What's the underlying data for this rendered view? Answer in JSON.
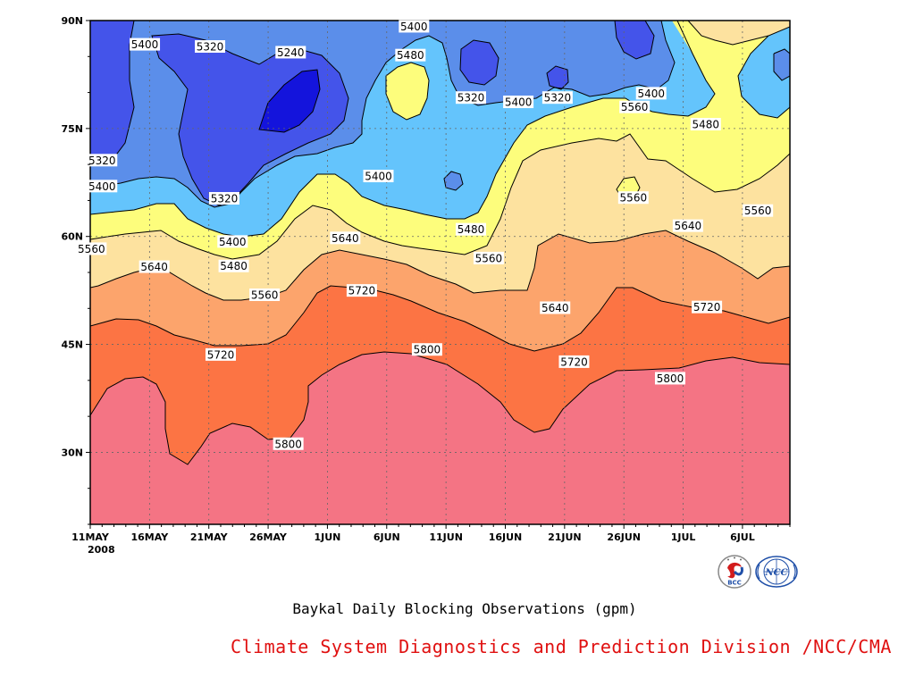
{
  "chart_data": {
    "type": "heatmap",
    "title": "Baykal Daily Blocking Observations (gpm)",
    "credit": "Climate System Diagnostics and Prediction Division /NCC/CMA",
    "x_ticks": [
      "11MAY",
      "16MAY",
      "21MAY",
      "26MAY",
      "1JUN",
      "6JUN",
      "11JUN",
      "16JUN",
      "21JUN",
      "26JUN",
      "1JUL",
      "6JUL"
    ],
    "x_year": "2008",
    "y_ticks": [
      "30N",
      "45N",
      "60N",
      "75N",
      "90N"
    ],
    "x_range": [
      "2008-05-11",
      "2008-07-09"
    ],
    "y_range_deg": [
      20,
      90
    ],
    "grid": true,
    "contour_levels": [
      5240,
      5320,
      5400,
      5480,
      5560,
      5640,
      5720,
      5800
    ],
    "level_colors": [
      "#1414dc",
      "#4454ea",
      "#5b8eea",
      "#64c4fc",
      "#fdfd7c",
      "#fde29f",
      "#fca46c",
      "#fc7444",
      "#f47484"
    ],
    "contour_labels": [
      {
        "text": "5400",
        "x_day": 4.6,
        "y_deg": 86.7
      },
      {
        "text": "5320",
        "x_day": 10.1,
        "y_deg": 86.4
      },
      {
        "text": "5240",
        "x_day": 16.9,
        "y_deg": 85.6
      },
      {
        "text": "5400",
        "x_day": 27.3,
        "y_deg": 89.2
      },
      {
        "text": "5480",
        "x_day": 27.0,
        "y_deg": 85.2
      },
      {
        "text": "5320",
        "x_day": 32.1,
        "y_deg": 79.3
      },
      {
        "text": "5400",
        "x_day": 36.1,
        "y_deg": 78.7
      },
      {
        "text": "5320",
        "x_day": 39.4,
        "y_deg": 79.3
      },
      {
        "text": "5400",
        "x_day": 47.3,
        "y_deg": 79.9
      },
      {
        "text": "5560",
        "x_day": 45.9,
        "y_deg": 78.0
      },
      {
        "text": "5480",
        "x_day": 51.9,
        "y_deg": 75.6
      },
      {
        "text": "5320",
        "x_day": 1.0,
        "y_deg": 70.6
      },
      {
        "text": "5400",
        "x_day": 1.0,
        "y_deg": 67.0
      },
      {
        "text": "5400",
        "x_day": 24.3,
        "y_deg": 68.4
      },
      {
        "text": "5320",
        "x_day": 11.3,
        "y_deg": 65.3
      },
      {
        "text": "5560",
        "x_day": 45.8,
        "y_deg": 65.4
      },
      {
        "text": "5560",
        "x_day": 56.3,
        "y_deg": 63.6
      },
      {
        "text": "5480",
        "x_day": 32.1,
        "y_deg": 61.0
      },
      {
        "text": "5640",
        "x_day": 50.4,
        "y_deg": 61.5
      },
      {
        "text": "5400",
        "x_day": 12.0,
        "y_deg": 59.3
      },
      {
        "text": "5640",
        "x_day": 21.5,
        "y_deg": 59.8
      },
      {
        "text": "5560",
        "x_day": 0.1,
        "y_deg": 58.3
      },
      {
        "text": "5560",
        "x_day": 33.6,
        "y_deg": 57.0
      },
      {
        "text": "5640",
        "x_day": 5.4,
        "y_deg": 55.8
      },
      {
        "text": "5480",
        "x_day": 12.1,
        "y_deg": 55.9
      },
      {
        "text": "5720",
        "x_day": 22.9,
        "y_deg": 52.5
      },
      {
        "text": "5560",
        "x_day": 14.7,
        "y_deg": 51.9
      },
      {
        "text": "5640",
        "x_day": 39.2,
        "y_deg": 50.1
      },
      {
        "text": "5720",
        "x_day": 52.0,
        "y_deg": 50.2
      },
      {
        "text": "5800",
        "x_day": 28.4,
        "y_deg": 44.3
      },
      {
        "text": "5720",
        "x_day": 11.0,
        "y_deg": 43.6
      },
      {
        "text": "5720",
        "x_day": 40.8,
        "y_deg": 42.6
      },
      {
        "text": "5800",
        "x_day": 48.9,
        "y_deg": 40.3
      },
      {
        "text": "5800",
        "x_day": 16.7,
        "y_deg": 31.2
      }
    ]
  },
  "logos": [
    "bcc-logo-icon",
    "ncc-logo-icon"
  ]
}
